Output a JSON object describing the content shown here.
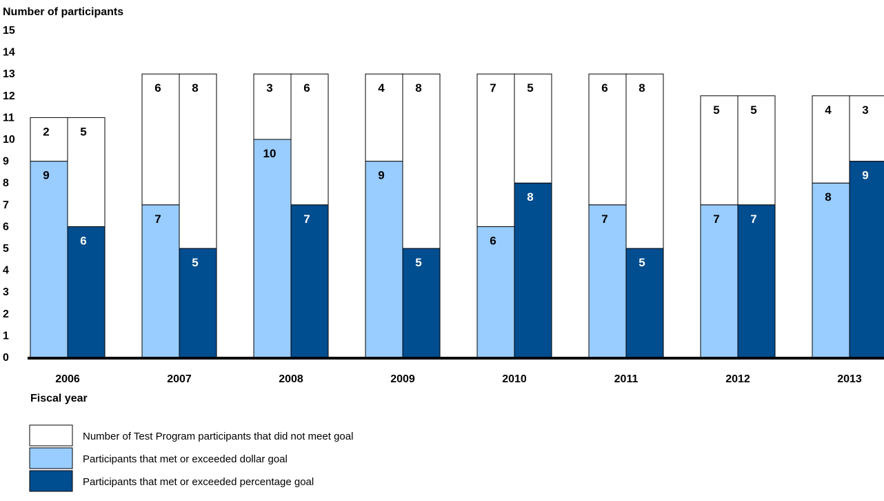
{
  "colors": {
    "not_met": "#ffffff",
    "dollar_goal": "#99ccff",
    "percentage_goal": "#004d8f",
    "outline": "#000000",
    "axis": "#000000",
    "text_dark_bar": "#ffffff",
    "text_light_bar": "#000000"
  },
  "chart_data": {
    "type": "bar",
    "stacked": true,
    "ylabel": "Number of participants",
    "xlabel": "Fiscal year",
    "ylim": [
      0,
      15
    ],
    "yticks": [
      15,
      14,
      13,
      12,
      11,
      10,
      9,
      8,
      7,
      6,
      5,
      4,
      3,
      2,
      1,
      0
    ],
    "grid": false,
    "legend_position": "bottom-left",
    "categories": [
      "2006",
      "2007",
      "2008",
      "2009",
      "2010",
      "2011",
      "2012",
      "2013"
    ],
    "groups": [
      {
        "year": "2006",
        "dollar_bar": {
          "met": 9,
          "not_met": 2
        },
        "percentage_bar": {
          "met": 6,
          "not_met": 5
        }
      },
      {
        "year": "2007",
        "dollar_bar": {
          "met": 7,
          "not_met": 6
        },
        "percentage_bar": {
          "met": 5,
          "not_met": 8
        }
      },
      {
        "year": "2008",
        "dollar_bar": {
          "met": 10,
          "not_met": 3
        },
        "percentage_bar": {
          "met": 7,
          "not_met": 6
        }
      },
      {
        "year": "2009",
        "dollar_bar": {
          "met": 9,
          "not_met": 4
        },
        "percentage_bar": {
          "met": 5,
          "not_met": 8
        }
      },
      {
        "year": "2010",
        "dollar_bar": {
          "met": 6,
          "not_met": 7
        },
        "percentage_bar": {
          "met": 8,
          "not_met": 5
        }
      },
      {
        "year": "2011",
        "dollar_bar": {
          "met": 7,
          "not_met": 6
        },
        "percentage_bar": {
          "met": 5,
          "not_met": 8
        }
      },
      {
        "year": "2012",
        "dollar_bar": {
          "met": 7,
          "not_met": 5
        },
        "percentage_bar": {
          "met": 7,
          "not_met": 5
        }
      },
      {
        "year": "2013",
        "dollar_bar": {
          "met": 8,
          "not_met": 4
        },
        "percentage_bar": {
          "met": 9,
          "not_met": 3
        }
      }
    ],
    "legend": [
      {
        "key": "not_met",
        "label": "Number of Test Program participants that did not meet goal"
      },
      {
        "key": "dollar_goal",
        "label": "Participants that met or exceeded dollar goal"
      },
      {
        "key": "percentage_goal",
        "label": "Participants that met or exceeded percentage goal"
      }
    ]
  }
}
